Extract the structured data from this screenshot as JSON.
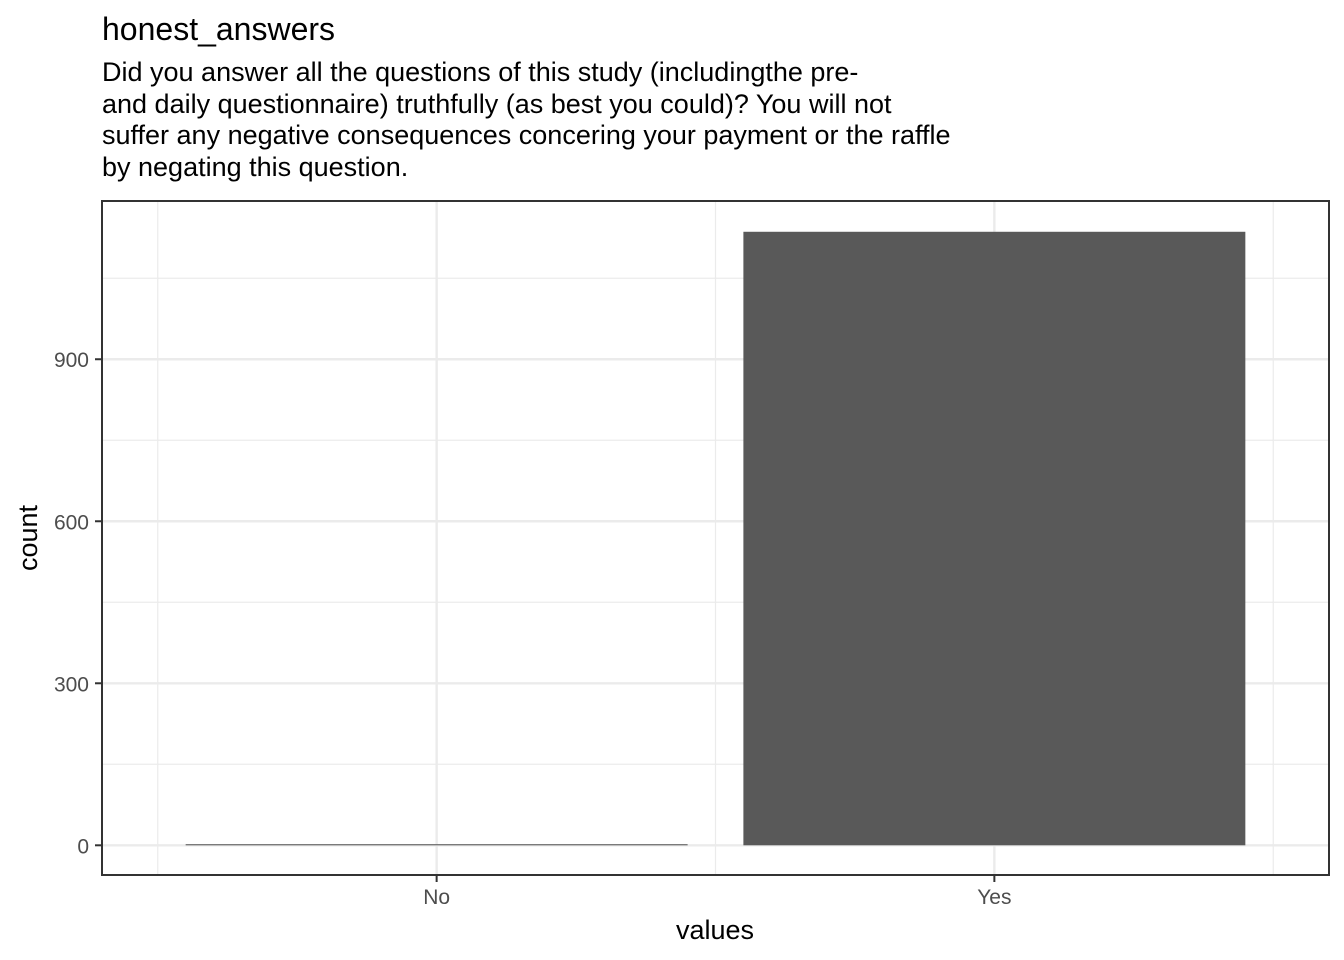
{
  "chart_data": {
    "type": "bar",
    "title": "honest_answers",
    "subtitle_lines": [
      "Did you answer all the questions of this study (includingthe pre-",
      "and daily questionnaire) truthfully (as best you could)? You will not",
      "suffer any negative consequences concering your payment or the raffle",
      "by negating this question."
    ],
    "categories": [
      "No",
      "Yes"
    ],
    "values": [
      2,
      1136
    ],
    "xlabel": "values",
    "ylabel": "count",
    "ylim": [
      -55,
      1193
    ],
    "yticks": [
      0,
      300,
      600,
      900
    ],
    "ytick_labels": [
      "0",
      "300",
      "600",
      "900"
    ],
    "grid": true,
    "bar_color": "#595959",
    "grid_color": "#ebebeb",
    "axis_color": "#333333",
    "tick_label_color": "#4d4d4d"
  }
}
